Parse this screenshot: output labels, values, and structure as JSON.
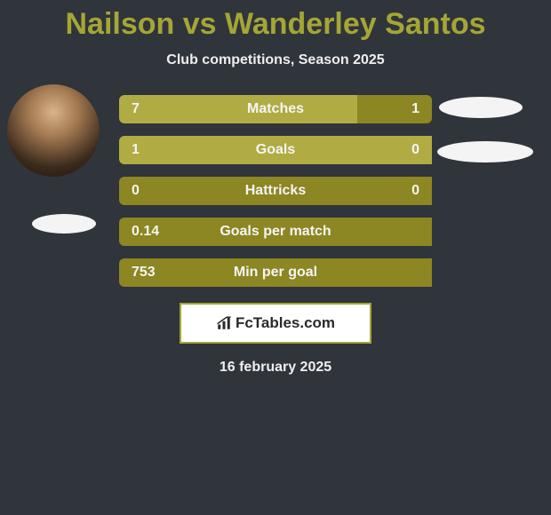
{
  "title": "Nailson vs Wanderley Santos",
  "subtitle": "Club competitions, Season 2025",
  "date": "16 february 2025",
  "logo_text": "FcTables.com",
  "colors": {
    "title_color": "#a4a635",
    "bar_dark": "#8c8623",
    "bar_light": "#b1ab43",
    "background": "#30343b",
    "logo_border": "#a4a635"
  },
  "stats": [
    {
      "label": "Matches",
      "left_value": "7",
      "right_value": "1",
      "left_fill_pct": 76,
      "right_fill_pct": 24,
      "left_color": "#b1ab43",
      "right_color": "#8c8623"
    },
    {
      "label": "Goals",
      "left_value": "1",
      "right_value": "0",
      "left_fill_pct": 100,
      "right_fill_pct": 0,
      "left_color": "#b1ab43",
      "right_color": "#8c8623"
    },
    {
      "label": "Hattricks",
      "left_value": "0",
      "right_value": "0",
      "left_fill_pct": 100,
      "right_fill_pct": 0,
      "left_color": "#8c8623",
      "right_color": "#8c8623"
    },
    {
      "label": "Goals per match",
      "left_value": "0.14",
      "right_value": "",
      "left_fill_pct": 100,
      "right_fill_pct": 0,
      "left_color": "#8c8623",
      "right_color": "#8c8623"
    },
    {
      "label": "Min per goal",
      "left_value": "753",
      "right_value": "",
      "left_fill_pct": 100,
      "right_fill_pct": 0,
      "left_color": "#8c8623",
      "right_color": "#8c8623"
    }
  ]
}
